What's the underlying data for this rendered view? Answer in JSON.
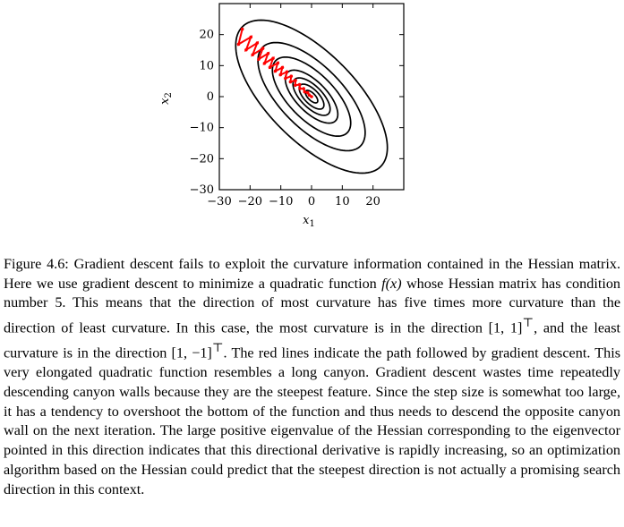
{
  "chart_data": {
    "type": "contour",
    "xlabel": "x",
    "xlabel_sub": "1",
    "ylabel": "x",
    "ylabel_sub": "2",
    "xlim": [
      -30,
      30
    ],
    "ylim": [
      -30,
      30
    ],
    "xticks": [
      -30,
      -20,
      -10,
      0,
      10,
      20
    ],
    "yticks": [
      -30,
      -20,
      -10,
      0,
      10,
      20
    ],
    "xtick_labels": [
      "−30",
      "−20",
      "−10",
      "0",
      "10",
      "20"
    ],
    "ytick_labels": [
      "−30",
      "−20",
      "−10",
      "0",
      "10",
      "20"
    ],
    "hessian_condition_number": 5,
    "contour_levels": [
      1,
      4,
      9,
      18,
      40,
      75,
      150
    ],
    "path_color": "#ff0000",
    "contour_color": "#000000",
    "descent_path": {
      "start": [
        -24,
        20
      ],
      "overshoot_amplitude": 2.3,
      "steps": 28
    }
  },
  "caption": {
    "label": "Figure 4.6:",
    "line1": "Gradient descent fails to exploit the curvature information contained in the",
    "line2": "Hessian matrix. Here we use gradient descent to minimize a quadratic function ",
    "fx": "f(x)",
    "line2b": " whose",
    "line3": "Hessian matrix has condition number 5. This means that the direction of most curvature",
    "line4": "has five times more curvature than the direction of least curvature. In this case, the most",
    "line5a": "curvature is in the direction ",
    "dir1": "[1, 1]",
    "line5b": ", and the least curvature is in the direction ",
    "dir2": "[1, −1]",
    "transpose": "⊤",
    "line5c": ".",
    "line6": "The red lines indicate the path followed by gradient descent. This very elongated quadratic",
    "line7": "function resembles a long canyon. Gradient descent wastes time repeatedly descending",
    "line8": "canyon walls because they are the steepest feature. Since the step size is somewhat too",
    "line9": "large, it has a tendency to overshoot the bottom of the function and thus needs to descend",
    "line10": "the opposite canyon wall on the next iteration. The large positive eigenvalue of the Hessian",
    "line11": "corresponding to the eigenvector pointed in this direction indicates that this directional",
    "line12": "derivative is rapidly increasing, so an optimization algorithm based on the Hessian could",
    "line13": "predict that the steepest direction is not actually a promising search direction in this",
    "line14": "context."
  }
}
